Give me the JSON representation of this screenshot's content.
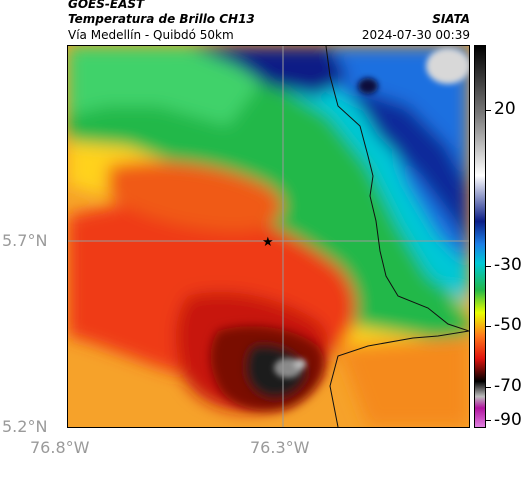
{
  "header": {
    "source": "GOES-EAST",
    "product": "Temperatura de Brillo CH13",
    "region": "Vía Medellín - Quibdó 50km",
    "org": "SIATA",
    "datetime": "2024-07-30 00:39"
  },
  "map": {
    "lat_labels": [
      "5.7°N",
      "5.2°N"
    ],
    "lon_labels": [
      "76.8°W",
      "76.3°W"
    ],
    "marker": "star"
  },
  "colorbar": {
    "labels": [
      "20",
      "-30",
      "-50",
      "-70",
      "-90"
    ],
    "palette": [
      "#ffffff",
      "#1f1f1f",
      "#00106e",
      "#1c7fe6",
      "#16a34a",
      "#e8ff00",
      "#ff7a1a",
      "#e0140f",
      "#000000",
      "#b0149e"
    ]
  }
}
